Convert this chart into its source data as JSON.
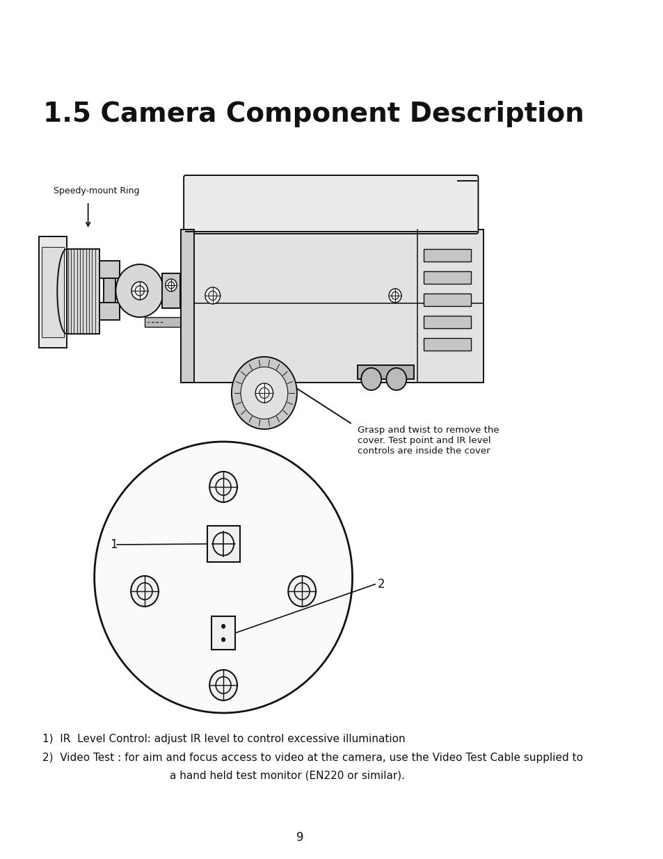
{
  "title": "1.5 Camera Component Description",
  "title_fontsize": 28,
  "title_fontweight": "bold",
  "bg_color": "#ffffff",
  "text_color": "#111111",
  "label1_left": "Speedy-mount Ring",
  "label1_right": "Speedy-mount Ring",
  "annotation_grasp": "Grasp and twist to remove the\ncover. Test point and IR level\ncontrols are inside the cover",
  "label_1": "1",
  "label_2": "2",
  "footer_text1": "1)  IR  Level Control: adjust IR level to control excessive illumination",
  "footer_text2": "2)  Video Test : for aim and focus access to video at the camera, use the Video Test Cable supplied to",
  "footer_text3": "a hand held test monitor (EN220 or similar).",
  "page_number": "9",
  "font_size_body": 11,
  "font_size_label": 9
}
